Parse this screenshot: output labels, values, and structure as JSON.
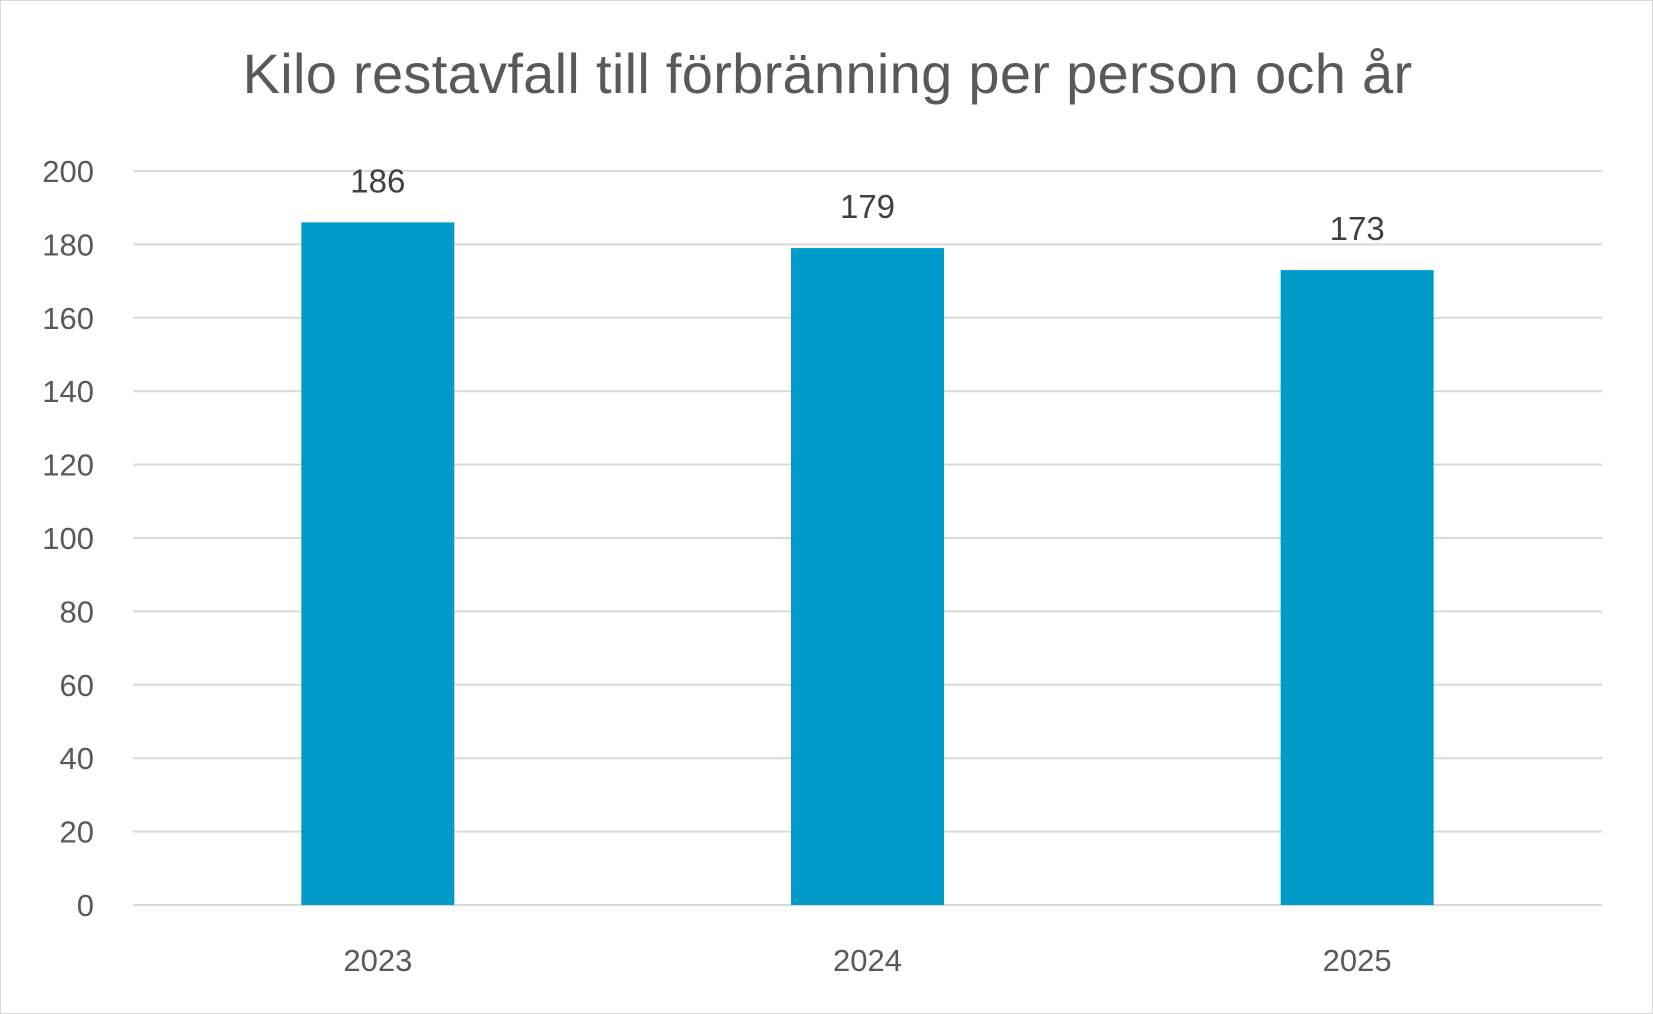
{
  "chart_data": {
    "type": "bar",
    "title": "Kilo restavfall till förbränning per person och år",
    "xlabel": "",
    "ylabel": "",
    "categories": [
      "2023",
      "2024",
      "2025"
    ],
    "values": [
      186,
      179,
      173
    ],
    "data_labels": [
      "186",
      "179",
      "173"
    ],
    "ylim": [
      0,
      200
    ],
    "yticks": [
      0,
      20,
      40,
      60,
      80,
      100,
      120,
      140,
      160,
      180,
      200
    ],
    "grid": true,
    "legend": "none",
    "bar_color": "#009BC8",
    "grid_color": "#D9D9D9"
  }
}
